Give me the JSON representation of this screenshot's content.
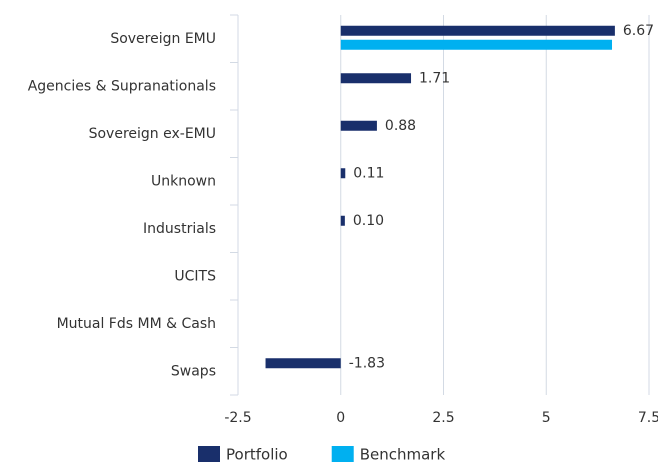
{
  "chart_data": {
    "type": "hbar",
    "categories": [
      "Sovereign EMU",
      "Agencies & Supranationals",
      "Sovereign ex-EMU",
      "Unknown",
      "Industrials",
      "UCITS",
      "Mutual Fds MM & Cash",
      "Swaps"
    ],
    "series": [
      {
        "name": "Portfolio",
        "color": "#192f6b",
        "values": [
          6.67,
          1.71,
          0.88,
          0.11,
          0.1,
          null,
          null,
          -1.83
        ],
        "value_labels": [
          "6.67",
          "1.71",
          "0.88",
          "0.11",
          "0.10",
          null,
          null,
          "-1.83"
        ]
      },
      {
        "name": "Benchmark",
        "color": "#00b0f0",
        "values": [
          6.6,
          null,
          null,
          null,
          null,
          null,
          null,
          null
        ]
      }
    ],
    "xlim": [
      -2.5,
      7.5
    ],
    "xticks": [
      -2.5,
      0,
      2.5,
      5,
      7.5
    ],
    "grid": true,
    "legend": "bottom"
  }
}
